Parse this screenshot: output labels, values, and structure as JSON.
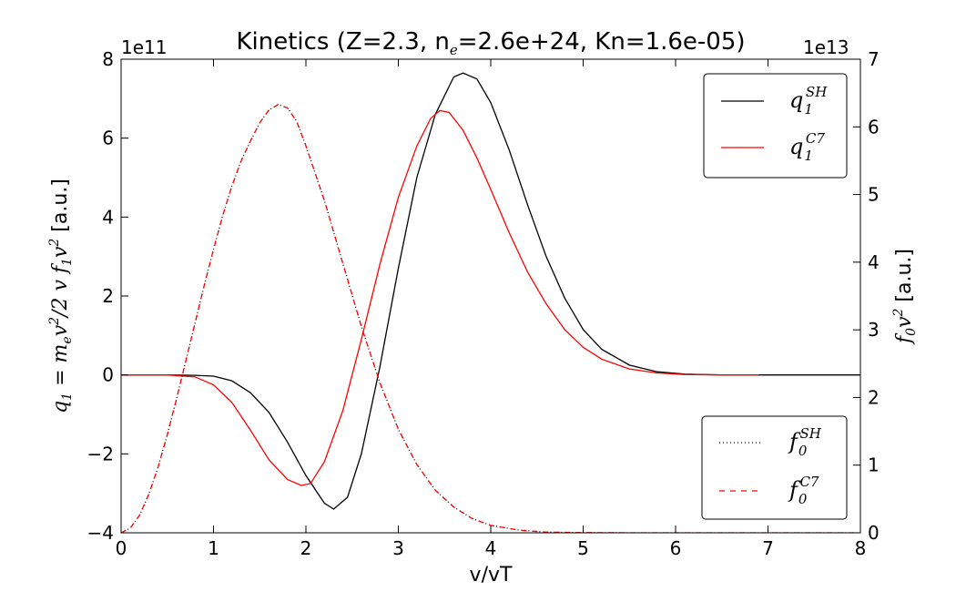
{
  "chart_data": {
    "type": "line",
    "title_parts": {
      "prefix": "Kinetics (Z=2.3, n",
      "sub": "e",
      "suffix": "=2.6e+24, Kn=1.6e-05)"
    },
    "xlabel": "v/vT",
    "ylabel_left_parts": {
      "q": "q",
      "q_sub": "1",
      "eq": " = m",
      "m_sub": "e",
      "v": "v",
      "v_sup": "2",
      "rest": "/2 v f",
      "f_sub": "1",
      "v2": "v",
      "v2_sup": "2",
      "units": " [a.u.]"
    },
    "ylabel_right_parts": {
      "f": "f",
      "f_sub": "0",
      "v": "v",
      "v_sup": "2",
      "units": " [a.u.]"
    },
    "offset_left": "1e11",
    "offset_right": "1e13",
    "xlim": [
      0,
      8
    ],
    "ylim_left": [
      -4,
      8
    ],
    "ylim_right": [
      0,
      7
    ],
    "xticks": [
      "0",
      "1",
      "2",
      "3",
      "4",
      "5",
      "6",
      "7",
      "8"
    ],
    "yticks_left": [
      "−4",
      "−2",
      "0",
      "2",
      "4",
      "6",
      "8"
    ],
    "yticks_right": [
      "0",
      "1",
      "2",
      "3",
      "4",
      "5",
      "6",
      "7"
    ],
    "grid": false,
    "legends": [
      {
        "placement": "upper-right",
        "entries": [
          "q1_SH",
          "q1_C7"
        ]
      },
      {
        "placement": "lower-right",
        "entries": [
          "f0_SH",
          "f0_C7"
        ]
      }
    ],
    "legend_labels": {
      "q1_SH": {
        "base": "q",
        "sub": "1",
        "sup": "SH"
      },
      "q1_C7": {
        "base": "q",
        "sub": "1",
        "sup": "C7"
      },
      "f0_SH": {
        "base": "f",
        "sub": "0",
        "sup": "SH"
      },
      "f0_C7": {
        "base": "f",
        "sub": "0",
        "sup": "C7"
      }
    },
    "series": [
      {
        "key": "q1_SH",
        "axis": "left",
        "color": "#000000",
        "style": "solid",
        "x": [
          0.0,
          0.5,
          0.8,
          1.0,
          1.2,
          1.4,
          1.6,
          1.8,
          2.0,
          2.2,
          2.3,
          2.45,
          2.6,
          2.8,
          3.0,
          3.2,
          3.4,
          3.6,
          3.7,
          3.85,
          4.0,
          4.2,
          4.4,
          4.6,
          4.8,
          5.0,
          5.2,
          5.5,
          5.8,
          6.1,
          6.5,
          7.0,
          7.5,
          8.0
        ],
        "y": [
          0.0,
          0.0,
          -0.01,
          -0.03,
          -0.15,
          -0.45,
          -0.95,
          -1.7,
          -2.55,
          -3.25,
          -3.4,
          -3.1,
          -2.0,
          0.2,
          2.7,
          5.0,
          6.6,
          7.55,
          7.65,
          7.5,
          6.9,
          5.7,
          4.3,
          3.0,
          1.95,
          1.15,
          0.65,
          0.25,
          0.08,
          0.02,
          0.0,
          0.0,
          0.0,
          0.0
        ]
      },
      {
        "key": "q1_C7",
        "axis": "left",
        "color": "#ff0000",
        "style": "solid",
        "x": [
          0.0,
          0.5,
          0.8,
          1.0,
          1.2,
          1.4,
          1.6,
          1.8,
          1.95,
          2.05,
          2.2,
          2.4,
          2.6,
          2.8,
          3.0,
          3.2,
          3.35,
          3.45,
          3.55,
          3.7,
          3.85,
          4.0,
          4.2,
          4.4,
          4.6,
          4.8,
          5.0,
          5.2,
          5.5,
          5.8,
          6.1,
          6.5,
          6.9
        ],
        "y": [
          0.0,
          0.0,
          -0.05,
          -0.25,
          -0.7,
          -1.4,
          -2.15,
          -2.65,
          -2.8,
          -2.75,
          -2.2,
          -0.9,
          0.9,
          2.8,
          4.5,
          5.8,
          6.5,
          6.7,
          6.65,
          6.2,
          5.5,
          4.7,
          3.6,
          2.6,
          1.8,
          1.15,
          0.7,
          0.4,
          0.15,
          0.05,
          0.01,
          0.0,
          0.0
        ]
      },
      {
        "key": "f0_SH",
        "axis": "right",
        "color": "#000000",
        "style": "dotted",
        "x": [
          0.0,
          0.1,
          0.2,
          0.3,
          0.4,
          0.5,
          0.6,
          0.7,
          0.8,
          0.9,
          1.0,
          1.1,
          1.2,
          1.3,
          1.41,
          1.5,
          1.6,
          1.7,
          1.8,
          1.9,
          2.0,
          2.2,
          2.4,
          2.6,
          2.8,
          3.0,
          3.2,
          3.4,
          3.6,
          3.8,
          4.0,
          4.3,
          4.6,
          5.0,
          5.5,
          6.0,
          7.0,
          8.0
        ],
        "y": [
          0.0,
          0.07,
          0.26,
          0.57,
          0.97,
          1.45,
          1.98,
          2.54,
          3.1,
          3.66,
          4.19,
          4.69,
          5.13,
          5.5,
          5.82,
          6.06,
          6.25,
          6.33,
          6.28,
          6.08,
          5.72,
          4.91,
          3.98,
          3.05,
          2.22,
          1.53,
          1.01,
          0.63,
          0.38,
          0.21,
          0.11,
          0.04,
          0.01,
          0.003,
          0.0,
          0.0,
          0.0,
          0.0
        ]
      },
      {
        "key": "f0_C7",
        "axis": "right",
        "color": "#ff0000",
        "style": "dashed",
        "x": [
          0.0,
          0.1,
          0.2,
          0.3,
          0.4,
          0.5,
          0.6,
          0.7,
          0.8,
          0.9,
          1.0,
          1.1,
          1.2,
          1.3,
          1.41,
          1.5,
          1.6,
          1.7,
          1.8,
          1.9,
          2.0,
          2.2,
          2.4,
          2.6,
          2.8,
          3.0,
          3.2,
          3.4,
          3.6,
          3.8,
          4.0,
          4.3,
          4.6,
          5.0,
          5.5,
          6.0,
          7.0,
          8.0
        ],
        "y": [
          0.0,
          0.07,
          0.26,
          0.57,
          0.97,
          1.45,
          1.98,
          2.54,
          3.1,
          3.66,
          4.19,
          4.69,
          5.13,
          5.5,
          5.82,
          6.06,
          6.25,
          6.33,
          6.28,
          6.08,
          5.72,
          4.91,
          3.98,
          3.05,
          2.22,
          1.53,
          1.01,
          0.63,
          0.38,
          0.21,
          0.11,
          0.04,
          0.01,
          0.003,
          0.0,
          0.0,
          0.0,
          0.0
        ]
      }
    ]
  }
}
